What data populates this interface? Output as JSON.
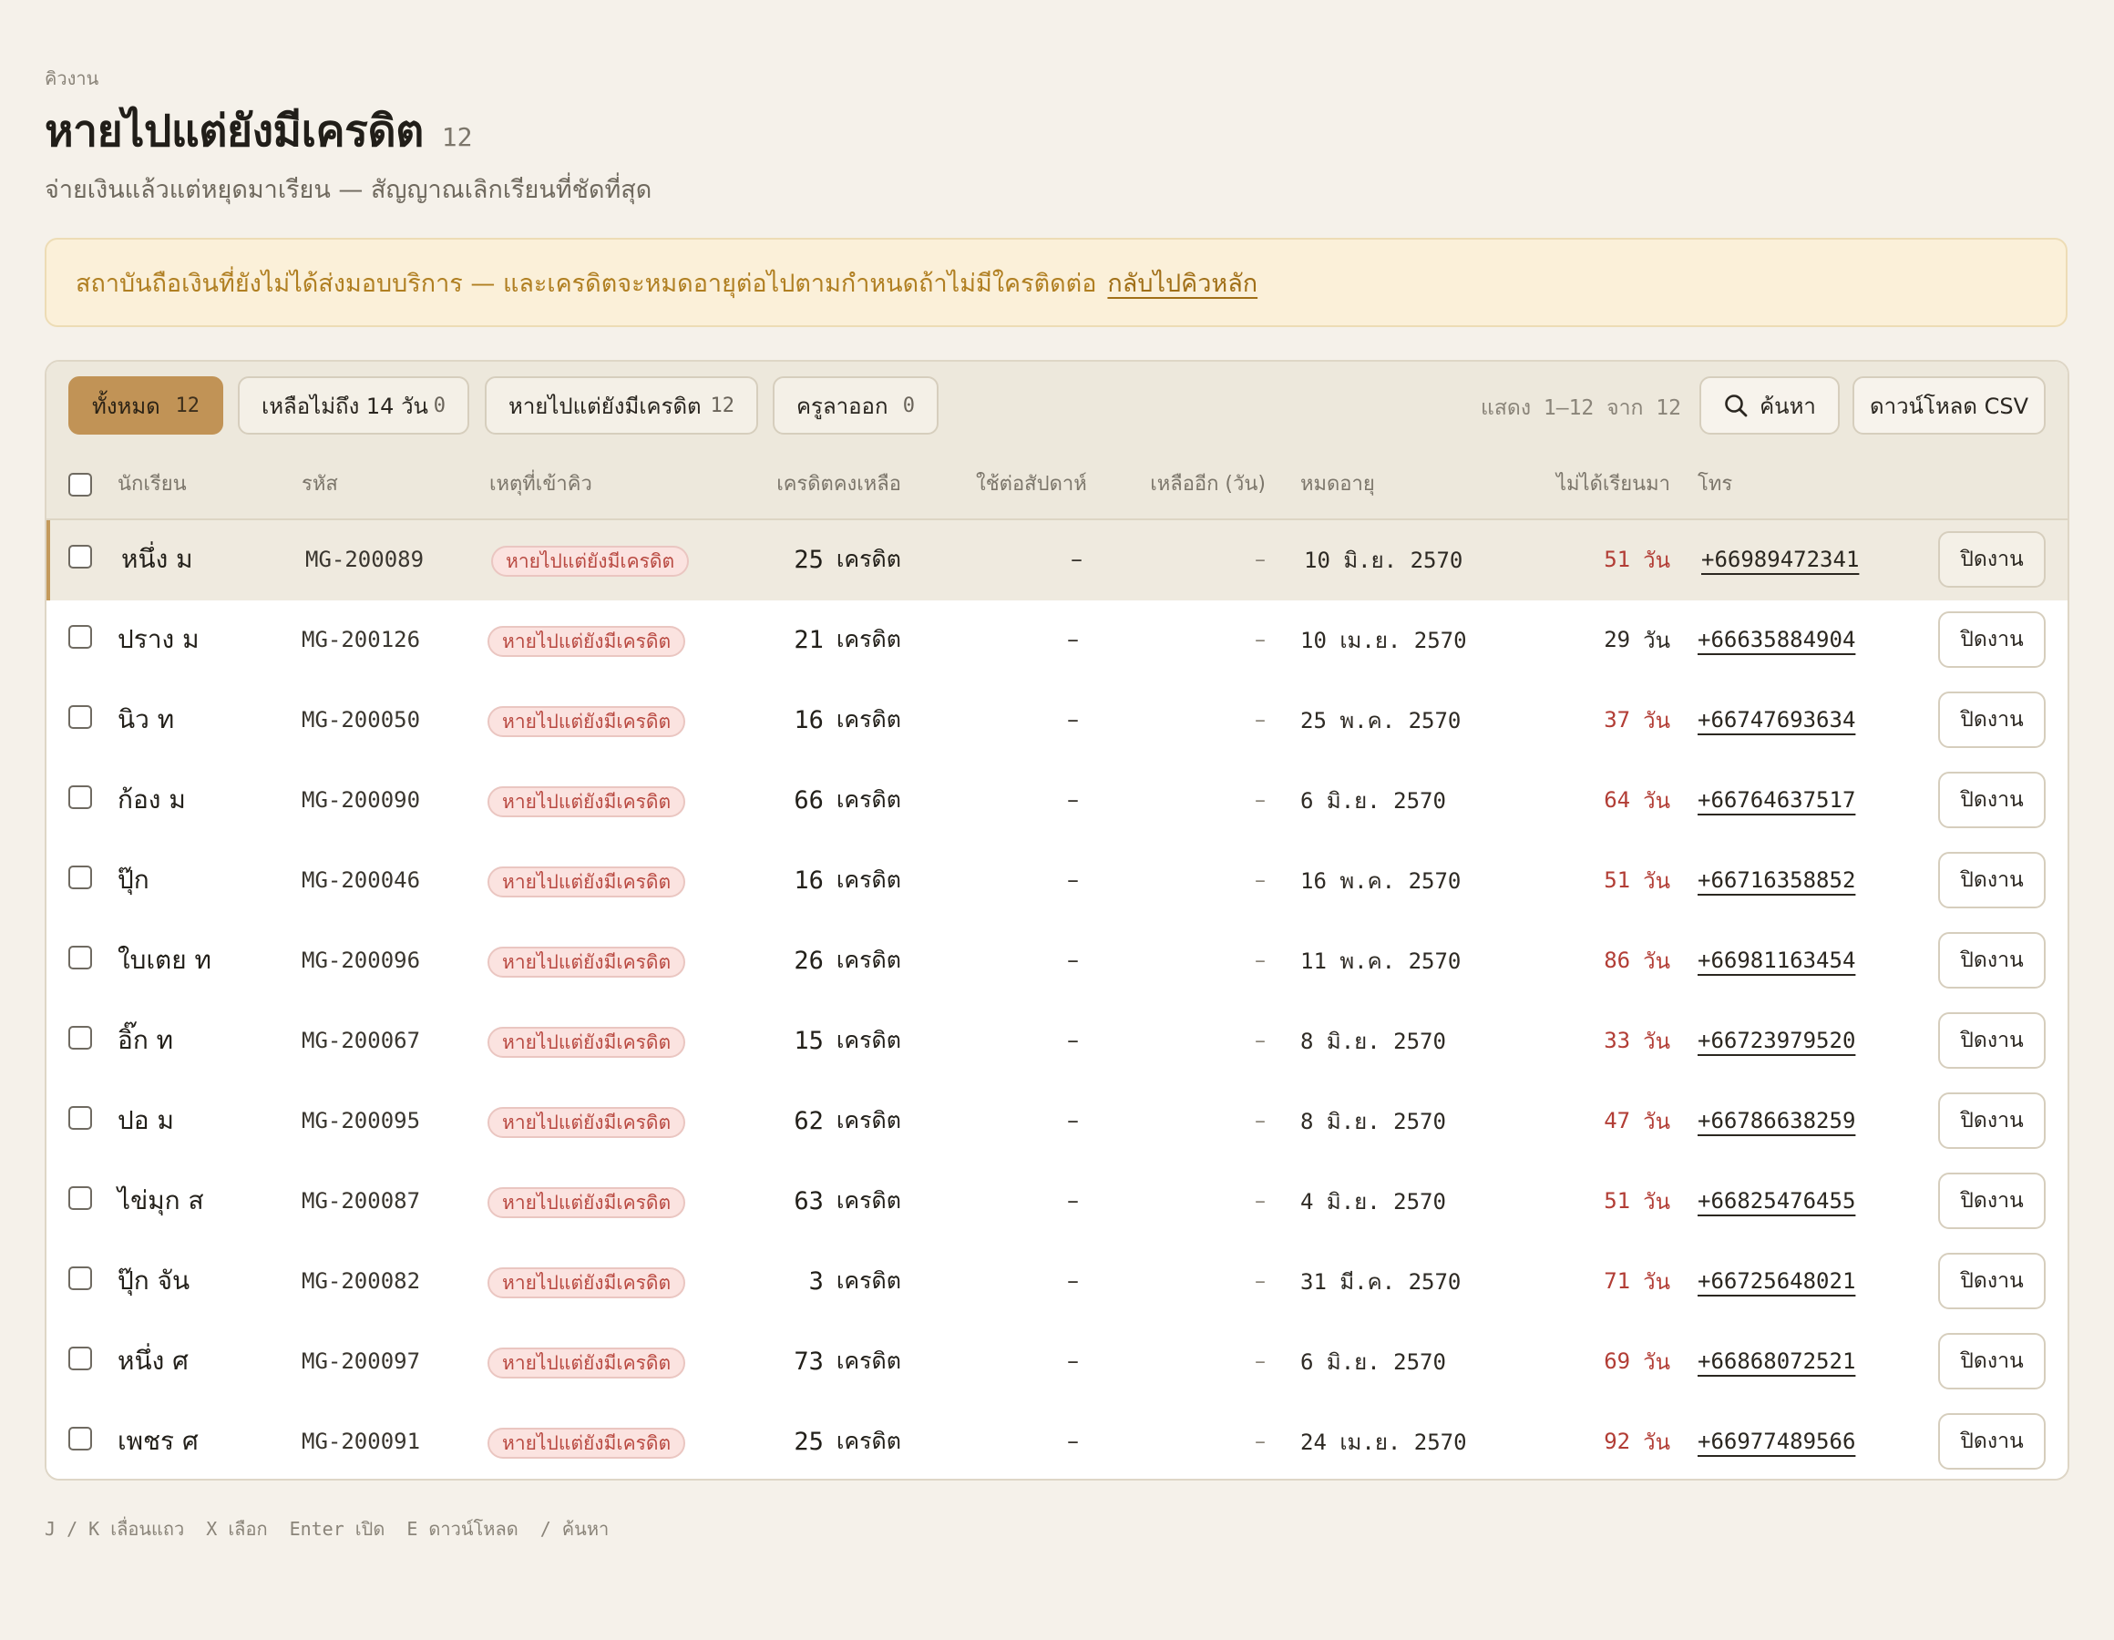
{
  "header": {
    "eyebrow": "คิวงาน",
    "title": "หายไปแต่ยังมีเครดิต",
    "count": "12",
    "subtitle": "จ่ายเงินแล้วแต่หยุดมาเรียน — สัญญาณเลิกเรียนที่ชัดที่สุด"
  },
  "banner": {
    "text": "สถาบันถือเงินที่ยังไม่ได้ส่งมอบบริการ — และเครดิตจะหมดอายุต่อไปตามกำหนดถ้าไม่มีใครติดต่อ",
    "link": "กลับไปคิวหลัก"
  },
  "toolbar": {
    "tabs": [
      {
        "label": "ทั้งหมด",
        "count": "12"
      },
      {
        "label": "เหลือไม่ถึง 14 วัน",
        "count": "0"
      },
      {
        "label": "หายไปแต่ยังมีเครดิต",
        "count": "12"
      },
      {
        "label": "ครูลาออก",
        "count": "0"
      }
    ],
    "showing": "แสดง 1–12 จาก 12",
    "search_label": "ค้นหา",
    "csv_label": "ดาวน์โหลด CSV"
  },
  "columns": {
    "student": "นักเรียน",
    "code": "รหัส",
    "reason": "เหตุที่เข้าคิว",
    "credit": "เครดิตคงเหลือ",
    "per_week": "ใช้ต่อสัปดาห์",
    "remaining": "เหลืออีก (วัน)",
    "expiry": "หมดอายุ",
    "absent": "ไม่ได้เรียนมา",
    "phone": "โทร"
  },
  "rows": [
    {
      "name": "หนึ่ง ม",
      "code": "MG-200089",
      "reason": "หายไปแต่ยังมีเครดิต",
      "credit": "25",
      "credit_unit": "เครดิต",
      "per_week": "–",
      "remaining": "–",
      "expiry": "10 มิ.ย. 2570",
      "absent": "51",
      "absent_unit": "วัน",
      "phone": "+66989472341",
      "action": "ปิดงาน"
    },
    {
      "name": "ปราง ม",
      "code": "MG-200126",
      "reason": "หายไปแต่ยังมีเครดิต",
      "credit": "21",
      "credit_unit": "เครดิต",
      "per_week": "–",
      "remaining": "–",
      "expiry": "10 เม.ย. 2570",
      "absent": "29",
      "absent_unit": "วัน",
      "phone": "+66635884904",
      "action": "ปิดงาน"
    },
    {
      "name": "นิว ท",
      "code": "MG-200050",
      "reason": "หายไปแต่ยังมีเครดิต",
      "credit": "16",
      "credit_unit": "เครดิต",
      "per_week": "–",
      "remaining": "–",
      "expiry": "25 พ.ค. 2570",
      "absent": "37",
      "absent_unit": "วัน",
      "phone": "+66747693634",
      "action": "ปิดงาน"
    },
    {
      "name": "ก้อง ม",
      "code": "MG-200090",
      "reason": "หายไปแต่ยังมีเครดิต",
      "credit": "66",
      "credit_unit": "เครดิต",
      "per_week": "–",
      "remaining": "–",
      "expiry": "6 มิ.ย. 2570",
      "absent": "64",
      "absent_unit": "วัน",
      "phone": "+66764637517",
      "action": "ปิดงาน"
    },
    {
      "name": "ปุ๊ก",
      "code": "MG-200046",
      "reason": "หายไปแต่ยังมีเครดิต",
      "credit": "16",
      "credit_unit": "เครดิต",
      "per_week": "–",
      "remaining": "–",
      "expiry": "16 พ.ค. 2570",
      "absent": "51",
      "absent_unit": "วัน",
      "phone": "+66716358852",
      "action": "ปิดงาน"
    },
    {
      "name": "ใบเตย ท",
      "code": "MG-200096",
      "reason": "หายไปแต่ยังมีเครดิต",
      "credit": "26",
      "credit_unit": "เครดิต",
      "per_week": "–",
      "remaining": "–",
      "expiry": "11 พ.ค. 2570",
      "absent": "86",
      "absent_unit": "วัน",
      "phone": "+66981163454",
      "action": "ปิดงาน"
    },
    {
      "name": "อิ๊ก ท",
      "code": "MG-200067",
      "reason": "หายไปแต่ยังมีเครดิต",
      "credit": "15",
      "credit_unit": "เครดิต",
      "per_week": "–",
      "remaining": "–",
      "expiry": "8 มิ.ย. 2570",
      "absent": "33",
      "absent_unit": "วัน",
      "phone": "+66723979520",
      "action": "ปิดงาน"
    },
    {
      "name": "ปอ ม",
      "code": "MG-200095",
      "reason": "หายไปแต่ยังมีเครดิต",
      "credit": "62",
      "credit_unit": "เครดิต",
      "per_week": "–",
      "remaining": "–",
      "expiry": "8 มิ.ย. 2570",
      "absent": "47",
      "absent_unit": "วัน",
      "phone": "+66786638259",
      "action": "ปิดงาน"
    },
    {
      "name": "ไข่มุก ส",
      "code": "MG-200087",
      "reason": "หายไปแต่ยังมีเครดิต",
      "credit": "63",
      "credit_unit": "เครดิต",
      "per_week": "–",
      "remaining": "–",
      "expiry": "4 มิ.ย. 2570",
      "absent": "51",
      "absent_unit": "วัน",
      "phone": "+66825476455",
      "action": "ปิดงาน"
    },
    {
      "name": "ปุ๊ก จัน",
      "code": "MG-200082",
      "reason": "หายไปแต่ยังมีเครดิต",
      "credit": "3",
      "credit_unit": "เครดิต",
      "per_week": "–",
      "remaining": "–",
      "expiry": "31 มี.ค. 2570",
      "absent": "71",
      "absent_unit": "วัน",
      "phone": "+66725648021",
      "action": "ปิดงาน"
    },
    {
      "name": "หนึ่ง ศ",
      "code": "MG-200097",
      "reason": "หายไปแต่ยังมีเครดิต",
      "credit": "73",
      "credit_unit": "เครดิต",
      "per_week": "–",
      "remaining": "–",
      "expiry": "6 มิ.ย. 2570",
      "absent": "69",
      "absent_unit": "วัน",
      "phone": "+66868072521",
      "action": "ปิดงาน"
    },
    {
      "name": "เพชร ศ",
      "code": "MG-200091",
      "reason": "หายไปแต่ยังมีเครดิต",
      "credit": "25",
      "credit_unit": "เครดิต",
      "per_week": "–",
      "remaining": "–",
      "expiry": "24 เม.ย. 2570",
      "absent": "92",
      "absent_unit": "วัน",
      "phone": "+66977489566",
      "action": "ปิดงาน"
    }
  ],
  "hints": [
    "J / K เลื่อนแถว",
    "X เลือก",
    "Enter เปิด",
    "E ดาวน์โหลด",
    "/ ค้นหา"
  ],
  "colors": {
    "accent": "#c19356",
    "banner_text": "#b07f22",
    "alert": "#b23d35"
  },
  "icons": {
    "search": "search-icon"
  }
}
